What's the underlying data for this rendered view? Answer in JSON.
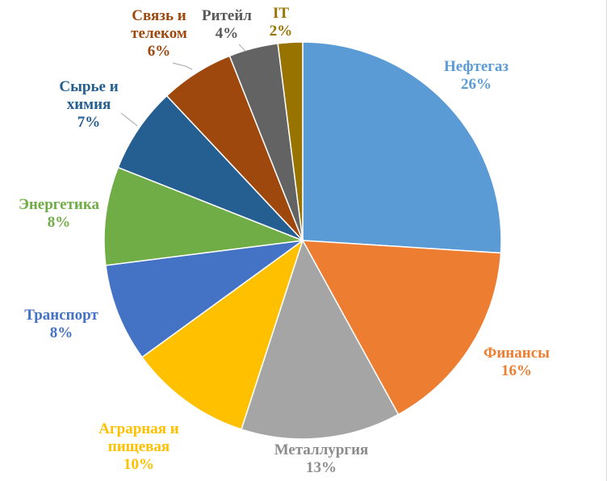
{
  "chart_data": {
    "type": "pie",
    "title": "",
    "unit": "%",
    "slices": [
      {
        "name": "Нефтегаз",
        "value": 26,
        "label": "26%",
        "color": "#5b9bd5",
        "label_color": "#5b9bd5"
      },
      {
        "name": "Финансы",
        "value": 16,
        "label": "16%",
        "color": "#ed7d31",
        "label_color": "#ed7d31"
      },
      {
        "name": "Металлургия",
        "value": 13,
        "label": "13%",
        "color": "#a5a5a5",
        "label_color": "#8c8c8c"
      },
      {
        "name": "Аграрная и пищевая",
        "value": 10,
        "label": "10%",
        "color": "#ffc000",
        "label_color": "#ffc000"
      },
      {
        "name": "Транспорт",
        "value": 8,
        "label": "8%",
        "color": "#4472c4",
        "label_color": "#4472c4"
      },
      {
        "name": "Энергетика",
        "value": 8,
        "label": "8%",
        "color": "#70ad47",
        "label_color": "#70ad47"
      },
      {
        "name": "Сырье и химия",
        "value": 7,
        "label": "7%",
        "color": "#255e91",
        "label_color": "#255e91"
      },
      {
        "name": "Связь и телеком",
        "value": 6,
        "label": "6%",
        "color": "#9e480e",
        "label_color": "#9e480e"
      },
      {
        "name": "Ритейл",
        "value": 4,
        "label": "4%",
        "color": "#636363",
        "label_color": "#595959"
      },
      {
        "name": "IT",
        "value": 2,
        "label": "2%",
        "color": "#997300",
        "label_color": "#997300"
      }
    ],
    "start_angle_deg": 0,
    "direction": "clockwise",
    "legend": "none",
    "data_labels": "outside with leader lines"
  }
}
